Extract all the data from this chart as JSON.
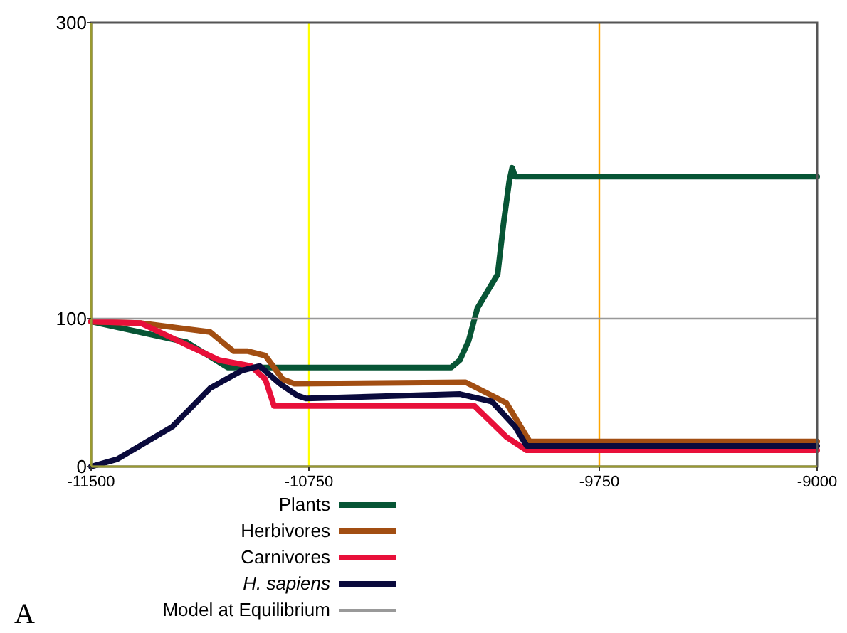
{
  "chart_data": {
    "type": "line",
    "xlim": [
      -11500,
      -9000
    ],
    "ylim": [
      0,
      300
    ],
    "xticks": [
      -11500,
      -10750,
      -9750,
      -9000
    ],
    "yticks": [
      0,
      100,
      300
    ],
    "legend": "bottom",
    "line_style": "solid",
    "series": [
      {
        "name": "Plants",
        "color": "#075535",
        "x": [
          -11500,
          -11170,
          -11030,
          -10980,
          -10260,
          -10230,
          -10200,
          -10170,
          -10100,
          -10080,
          -10060,
          -10050,
          -10040,
          -9000
        ],
        "values": [
          98,
          84,
          67,
          67,
          67,
          72,
          85,
          107,
          130,
          164,
          193,
          202,
          196,
          196
        ]
      },
      {
        "name": "Herbivores",
        "color": "#a24e12",
        "x": [
          -11500,
          -11330,
          -11090,
          -11010,
          -10960,
          -10900,
          -10840,
          -10800,
          -10210,
          -10070,
          -9990,
          -9000
        ],
        "values": [
          98,
          97,
          91,
          78,
          78,
          75,
          59,
          56,
          57,
          43,
          17,
          17
        ]
      },
      {
        "name": "Carnivores",
        "color": "#e8103a",
        "x": [
          -11500,
          -11330,
          -11060,
          -10950,
          -10900,
          -10870,
          -10180,
          -10070,
          -10000,
          -9000
        ],
        "values": [
          98,
          97,
          72,
          68,
          59,
          41,
          41,
          20,
          11,
          11
        ]
      },
      {
        "name": "H. sapiens",
        "color": "#0a0a3c",
        "x": [
          -11500,
          -11410,
          -11220,
          -11090,
          -10980,
          -10920,
          -10850,
          -10790,
          -10760,
          -10230,
          -10120,
          -10040,
          -10000,
          -9000
        ],
        "values": [
          0,
          5,
          27,
          53,
          65,
          68,
          56,
          48,
          46,
          49,
          44,
          27,
          14,
          14
        ]
      },
      {
        "name": "Model at Equilibrium",
        "color": "#999999",
        "x": [
          -11500,
          -9000
        ],
        "values": [
          100,
          100
        ]
      }
    ],
    "ref_lines": [
      {
        "axis": "x",
        "value": -10750,
        "color": "#ffff00"
      },
      {
        "axis": "x",
        "value": -9750,
        "color": "#ffa500"
      }
    ],
    "annotations": [
      "A"
    ]
  }
}
